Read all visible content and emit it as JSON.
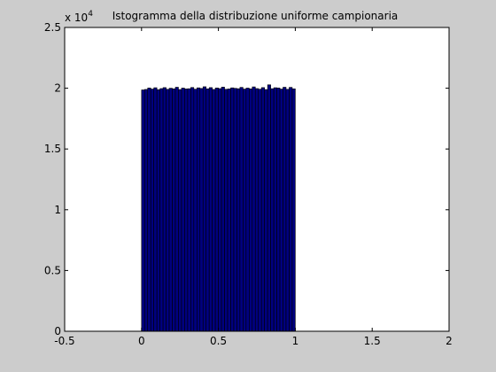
{
  "figure": {
    "background": "#cccccc",
    "axes_background": "#ffffff"
  },
  "chart_data": {
    "type": "bar",
    "title": "Istogramma della distribuzione uniforme campionaria",
    "xlabel": "",
    "ylabel": "",
    "xlim": [
      -0.5,
      2
    ],
    "ylim": [
      0,
      25000
    ],
    "xticks": [
      -0.5,
      0,
      0.5,
      1,
      1.5,
      2
    ],
    "xtick_labels": [
      "-0.5",
      "0",
      "0.5",
      "1",
      "1.5",
      "2"
    ],
    "yticks": [
      0,
      5000,
      10000,
      15000,
      20000,
      25000
    ],
    "ytick_labels": [
      "0",
      "0.5",
      "1",
      "1.5",
      "2",
      "2.5"
    ],
    "y_exponent_label": "x 10",
    "y_exponent_power": "4",
    "grid": false,
    "bar_color": "#00007f",
    "edge_color": "#000000",
    "bin_range": [
      0,
      1
    ],
    "bin_count": 50,
    "values": [
      19860,
      19900,
      20020,
      19930,
      20040,
      19880,
      19970,
      20050,
      19910,
      20000,
      19950,
      20080,
      19890,
      20010,
      19940,
      19960,
      20060,
      19920,
      20030,
      19980,
      20120,
      19950,
      20050,
      19900,
      20020,
      19970,
      20090,
      19910,
      19940,
      20030,
      19990,
      19960,
      20070,
      19930,
      20010,
      19950,
      20110,
      19970,
      19920,
      20050,
      19890,
      20280,
      19960,
      20040,
      20020,
      19930,
      20080,
      19910,
      20070,
      19950
    ]
  }
}
